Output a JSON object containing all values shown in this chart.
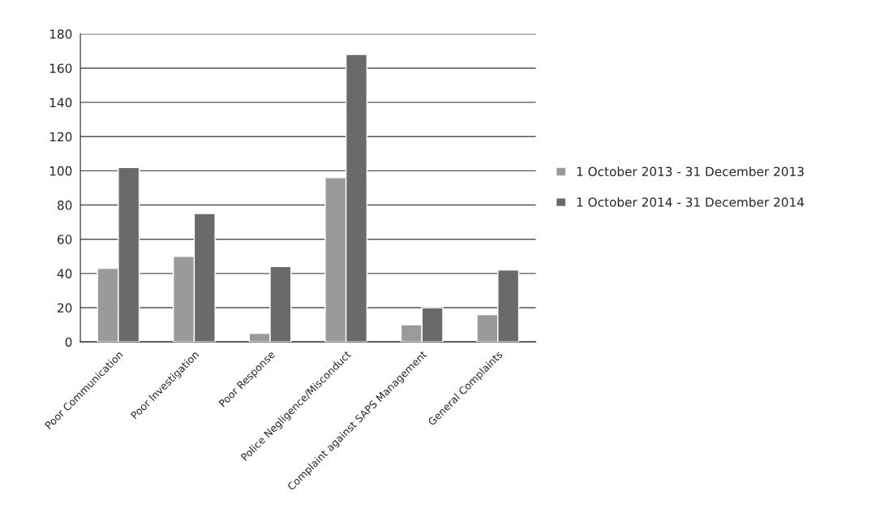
{
  "chart_data": {
    "type": "bar",
    "categories": [
      "Poor Communication",
      "Poor Investigation",
      "Poor Response",
      "Police Negligence/Misconduct",
      "Complaint against SAPS Management",
      "General Complaints"
    ],
    "series": [
      {
        "name": "1 October 2013 - 31 December 2013",
        "color": "#9a9a9a",
        "values": [
          43,
          50,
          5,
          96,
          10,
          16
        ]
      },
      {
        "name": "1 October 2014 - 31 December 2014",
        "color": "#6a6a6a",
        "values": [
          102,
          75,
          44,
          168,
          20,
          42
        ]
      }
    ],
    "ylim": [
      0,
      180
    ],
    "yticks": [
      0,
      20,
      40,
      60,
      80,
      100,
      120,
      140,
      160,
      180
    ],
    "grid": "y",
    "legend": "right"
  }
}
